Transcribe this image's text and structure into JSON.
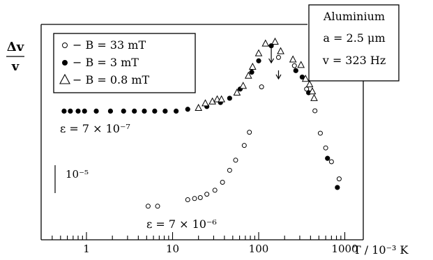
{
  "chart_data": {
    "type": "scatter",
    "x_scale": "log",
    "xlim": [
      0.35,
      1250
    ],
    "y_scale": "relative",
    "grid": false,
    "ylabel_numerator": "Δv",
    "ylabel_denominator": "v",
    "xlabel": "T / 10⁻³ K",
    "x_ticks": [
      {
        "value": 1,
        "label": "1"
      },
      {
        "value": 10,
        "label": "10"
      },
      {
        "value": 100,
        "label": "100"
      },
      {
        "value": 1000,
        "label": "1000"
      }
    ],
    "legend_position": "top-left",
    "legend": [
      {
        "marker": "circle-open",
        "text": "− B = 33 mT"
      },
      {
        "marker": "circle-filled",
        "text": "− B = 3 mT"
      },
      {
        "marker": "triangle-open",
        "text": "− B = 0.8 mT"
      }
    ],
    "info_box": {
      "line1": "Aluminium",
      "line2": "a = 2.5 μm",
      "line3": "v = 323 Hz"
    },
    "scale_bar_label": "10⁻⁵",
    "annotations": [
      {
        "text": "ε = 7 × 10⁻⁷",
        "near_series": "B = 3 mT"
      },
      {
        "text": "ε = 7 × 10⁻⁶",
        "near_series": "B = 33 mT"
      }
    ],
    "arrows": [
      {
        "x": 140,
        "series": "B = 3 mT"
      },
      {
        "x": 170,
        "series": "B = 33 mT"
      }
    ],
    "series": [
      {
        "name": "B = 33 mT",
        "marker": "circle-open",
        "points": [
          [
            5.2,
            0.5
          ],
          [
            6.7,
            0.5
          ],
          [
            15,
            2.6
          ],
          [
            18,
            3.0
          ],
          [
            21,
            3.3
          ],
          [
            25,
            4.4
          ],
          [
            31,
            5.7
          ],
          [
            38,
            8.3
          ],
          [
            46,
            12.2
          ],
          [
            54,
            15.5
          ],
          [
            68,
            20.3
          ],
          [
            78,
            24.6
          ],
          [
            108,
            39.4
          ],
          [
            170,
            49.0
          ],
          [
            260,
            46.3
          ],
          [
            360,
            38.7
          ],
          [
            450,
            31.6
          ],
          [
            520,
            24.3
          ],
          [
            600,
            19.5
          ],
          [
            700,
            15.0
          ],
          [
            860,
            9.4
          ]
        ]
      },
      {
        "name": "B = 3 mT",
        "marker": "circle-filled",
        "points": [
          [
            0.55,
            31.5
          ],
          [
            0.65,
            31.5
          ],
          [
            0.8,
            31.5
          ],
          [
            0.95,
            31.5
          ],
          [
            1.3,
            31.5
          ],
          [
            1.9,
            31.5
          ],
          [
            2.7,
            31.5
          ],
          [
            3.6,
            31.5
          ],
          [
            4.7,
            31.5
          ],
          [
            6.2,
            31.5
          ],
          [
            8.2,
            31.5
          ],
          [
            11,
            31.5
          ],
          [
            15,
            32.1
          ],
          [
            25,
            33.0
          ],
          [
            36,
            34.3
          ],
          [
            46,
            35.7
          ],
          [
            61,
            38.7
          ],
          [
            83,
            44.2
          ],
          [
            100,
            47.9
          ],
          [
            140,
            52.8
          ],
          [
            270,
            44.7
          ],
          [
            320,
            42.6
          ],
          [
            380,
            37.5
          ],
          [
            630,
            16.1
          ],
          [
            820,
            6.6
          ]
        ]
      },
      {
        "name": "B = 0.8 mT",
        "marker": "triangle-open",
        "points": [
          [
            20,
            32.5
          ],
          [
            24,
            34.0
          ],
          [
            29,
            34.6
          ],
          [
            33,
            35.3
          ],
          [
            37,
            35.3
          ],
          [
            56,
            37.5
          ],
          [
            66,
            39.7
          ],
          [
            76,
            43.0
          ],
          [
            85,
            45.9
          ],
          [
            100,
            50.3
          ],
          [
            120,
            53.5
          ],
          [
            155,
            54.1
          ],
          [
            180,
            51.0
          ],
          [
            250,
            48.3
          ],
          [
            310,
            46.5
          ],
          [
            350,
            42.0
          ],
          [
            390,
            40.2
          ],
          [
            420,
            37.9
          ],
          [
            440,
            35.7
          ]
        ]
      }
    ]
  }
}
